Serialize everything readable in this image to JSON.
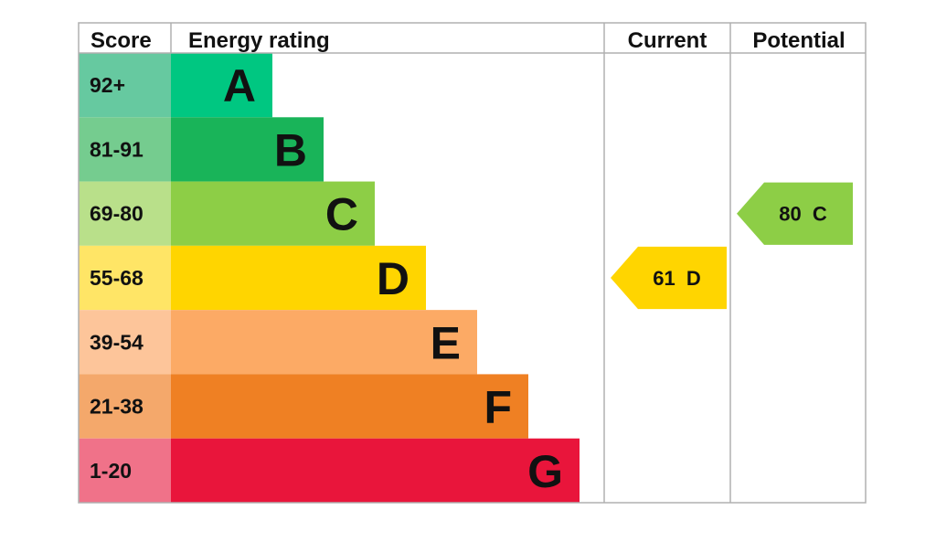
{
  "chart_data": {
    "type": "bar",
    "headers": {
      "score": "Score",
      "energy_rating": "Energy rating",
      "current": "Current",
      "potential": "Potential"
    },
    "bands": [
      {
        "score": "92+",
        "letter": "A",
        "bar_color": "#00c781",
        "score_color": "#66c9a0"
      },
      {
        "score": "81-91",
        "letter": "B",
        "bar_color": "#19b459",
        "score_color": "#75cc8f"
      },
      {
        "score": "69-80",
        "letter": "C",
        "bar_color": "#8dce46",
        "score_color": "#b9e08a"
      },
      {
        "score": "55-68",
        "letter": "D",
        "bar_color": "#ffd500",
        "score_color": "#ffe566"
      },
      {
        "score": "39-54",
        "letter": "E",
        "bar_color": "#fcaa65",
        "score_color": "#fdc59a"
      },
      {
        "score": "21-38",
        "letter": "F",
        "bar_color": "#ef8023",
        "score_color": "#f4a86b"
      },
      {
        "score": "1-20",
        "letter": "G",
        "bar_color": "#e9153b",
        "score_color": "#f07289"
      }
    ],
    "current": {
      "value": 61,
      "band": "D",
      "label": "61  D",
      "color": "#ffd500"
    },
    "potential": {
      "value": 80,
      "band": "C",
      "label": "80  C",
      "color": "#8dce46"
    }
  }
}
